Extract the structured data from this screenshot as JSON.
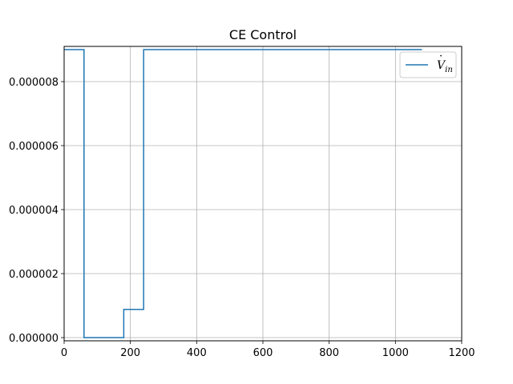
{
  "chart_data": {
    "type": "line",
    "title": "CE Control",
    "xlabel": "",
    "ylabel": "",
    "xlim": [
      0,
      1200
    ],
    "ylim": [
      -1e-07,
      9.1e-06
    ],
    "xticks": [
      0,
      200,
      400,
      600,
      800,
      1000,
      1200
    ],
    "yticks": [
      0.0,
      2e-06,
      4e-06,
      6e-06,
      8e-06
    ],
    "xtick_labels": [
      "0",
      "200",
      "400",
      "600",
      "800",
      "1000",
      "1200"
    ],
    "ytick_labels": [
      "0.000000",
      "0.000002",
      "0.000004",
      "0.000006",
      "0.000008"
    ],
    "grid": true,
    "legend_position": "top-right",
    "color": "#1f77b4",
    "step": "post",
    "series": [
      {
        "name": "V̇in",
        "x": [
          0,
          60,
          180,
          240,
          1080
        ],
        "y": [
          9e-06,
          0.0,
          8.8e-07,
          9e-06,
          9e-06
        ]
      }
    ],
    "legend": {
      "symbol": "V",
      "dot": "·",
      "subscript": "in"
    }
  }
}
